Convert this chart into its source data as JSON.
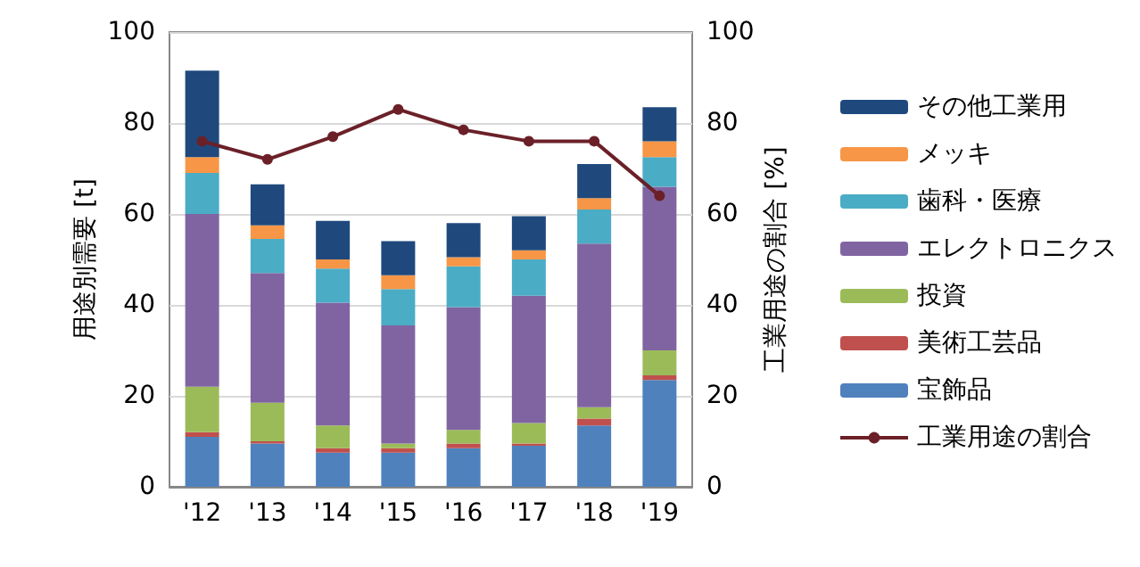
{
  "chart_data": {
    "type": "bar",
    "stacked": true,
    "ylabel": "用途別需要 [t]",
    "y2label": "工業用途の割合 [%]",
    "categories": [
      "'12",
      "'13",
      "'14",
      "'15",
      "'16",
      "'17",
      "'18",
      "'19"
    ],
    "series": [
      {
        "name": "宝飾品",
        "color": "#4f81bd",
        "values": [
          11,
          9.5,
          7.5,
          7.5,
          8.5,
          9,
          13.5,
          23.5
        ]
      },
      {
        "name": "美術工芸品",
        "color": "#c0504d",
        "values": [
          1,
          0.5,
          1,
          1,
          1,
          0.5,
          1.5,
          1
        ]
      },
      {
        "name": "投資",
        "color": "#9bbb59",
        "values": [
          10,
          8.5,
          5,
          1,
          3,
          4.5,
          2.5,
          5.5
        ]
      },
      {
        "name": "エレクトロニクス",
        "color": "#8064a2",
        "values": [
          38,
          28.5,
          27,
          26,
          27,
          28,
          36,
          36
        ]
      },
      {
        "name": "歯科・医療",
        "color": "#4bacc6",
        "values": [
          9,
          7.5,
          7.5,
          8,
          9,
          8,
          7.5,
          6.5
        ]
      },
      {
        "name": "メッキ",
        "color": "#f79646",
        "values": [
          3.5,
          3,
          2,
          3,
          2,
          2,
          2.5,
          3.5
        ]
      },
      {
        "name": "その他工業用",
        "color": "#1f497d",
        "values": [
          19,
          9,
          8.5,
          7.5,
          7.5,
          7.5,
          7.5,
          7.5
        ]
      },
      {
        "name": "工業用途の割合",
        "type": "line",
        "axis": "y2",
        "color": "#6b2028",
        "values": [
          76,
          72,
          77,
          83,
          78.5,
          76,
          76,
          64
        ]
      }
    ],
    "ylim": [
      0,
      100
    ],
    "yticks": [
      0,
      20,
      40,
      60,
      80,
      100
    ],
    "y2lim": [
      0,
      100
    ],
    "y2ticks": [
      0,
      20,
      40,
      60,
      80,
      100
    ],
    "grid": "y",
    "legend": "right",
    "marker": "circle"
  }
}
